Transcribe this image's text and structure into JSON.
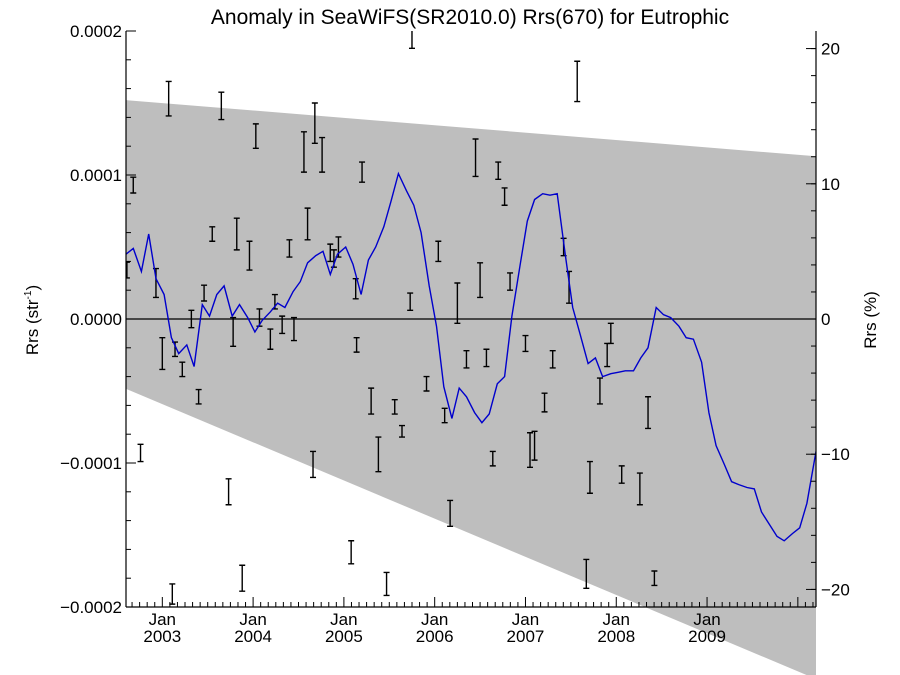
{
  "chart_data": {
    "type": "line",
    "title": "Anomaly in SeaWiFS(SR2010.0) Rrs(670) for Eutrophic",
    "ylabel_left": "Rrs (str",
    "ylabel_left_sup": "-1",
    "ylabel_left_end": ")",
    "ylabel_right": "Rrs (%)",
    "x_range": [
      2002.6,
      2010.2
    ],
    "ylim_left": [
      -0.0002,
      0.0002
    ],
    "ylim_right": [
      -21.3,
      21.3
    ],
    "x_ticks": [
      {
        "x": 2003.0,
        "month": "Jan",
        "year": "2003"
      },
      {
        "x": 2004.0,
        "month": "Jan",
        "year": "2004"
      },
      {
        "x": 2005.0,
        "month": "Jan",
        "year": "2005"
      },
      {
        "x": 2006.0,
        "month": "Jan",
        "year": "2006"
      },
      {
        "x": 2007.0,
        "month": "Jan",
        "year": "2007"
      },
      {
        "x": 2008.0,
        "month": "Jan",
        "year": "2008"
      },
      {
        "x": 2009.0,
        "month": "Jan",
        "year": "2009"
      }
    ],
    "y_ticks_left": [
      {
        "v": 0.0002,
        "label": "0.0002"
      },
      {
        "v": 0.0001,
        "label": "0.0001"
      },
      {
        "v": 0.0,
        "label": "0.0000"
      },
      {
        "v": -0.0001,
        "label": "−0.0001"
      },
      {
        "v": -0.0002,
        "label": "−0.0002"
      }
    ],
    "y_ticks_right": [
      {
        "v": 20,
        "label": "20"
      },
      {
        "v": 10,
        "label": "10"
      },
      {
        "v": 0,
        "label": "0"
      },
      {
        "v": -10,
        "label": "−10"
      },
      {
        "v": -20,
        "label": "−20"
      }
    ],
    "zero_line": 0.0,
    "band": {
      "x": [
        2002.6,
        2010.2
      ],
      "upper": [
        0.000152,
        0.000113
      ],
      "lower": [
        -4.85e-05,
        -0.00025
      ]
    },
    "series": [
      {
        "color": "#0000cc",
        "x": [
          2002.6,
          2002.68,
          2002.77,
          2002.85,
          2002.93,
          2003.02,
          2003.1,
          2003.18,
          2003.27,
          2003.35,
          2003.44,
          2003.52,
          2003.6,
          2003.68,
          2003.77,
          2003.85,
          2003.94,
          2004.02,
          2004.1,
          2004.19,
          2004.27,
          2004.35,
          2004.44,
          2004.52,
          2004.6,
          2004.69,
          2004.77,
          2004.85,
          2004.93,
          2005.02,
          2005.1,
          2005.19,
          2005.27,
          2005.35,
          2005.44,
          2005.52,
          2005.6,
          2005.69,
          2005.77,
          2005.85,
          2005.94,
          2006.02,
          2006.1,
          2006.19,
          2006.27,
          2006.35,
          2006.44,
          2006.52,
          2006.6,
          2006.69,
          2006.77,
          2006.85,
          2006.94,
          2007.02,
          2007.1,
          2007.19,
          2007.27,
          2007.35,
          2007.44,
          2007.52,
          2007.6,
          2007.69,
          2007.77,
          2007.85,
          2007.94,
          2008.02,
          2008.1,
          2008.19,
          2008.27,
          2008.35,
          2008.44,
          2008.52,
          2008.6,
          2008.69,
          2008.77,
          2008.85,
          2008.94,
          2009.02,
          2009.1,
          2009.19,
          2009.27,
          2009.35,
          2009.44,
          2009.52,
          2009.6,
          2009.69,
          2009.77,
          2009.85,
          2009.94,
          2010.02,
          2010.1,
          2010.2
        ],
        "values": [
          4.5e-05,
          4.9e-05,
          3.3e-05,
          5.9e-05,
          2.8e-05,
          1.7e-05,
          -1.3e-05,
          -2.4e-05,
          -1.8e-05,
          -3.3e-05,
          1e-05,
          2e-06,
          1.7e-05,
          2.3e-05,
          2e-06,
          1e-05,
          1e-06,
          -9e-06,
          -1e-06,
          5e-06,
          1.1e-05,
          8e-06,
          1.9e-05,
          2.6e-05,
          3.9e-05,
          4.4e-05,
          4.7e-05,
          3.1e-05,
          4.5e-05,
          5e-05,
          3.8e-05,
          1.7e-05,
          4.1e-05,
          5e-05,
          6.4e-05,
          8.2e-05,
          0.000101,
          8.9e-05,
          7.9e-05,
          6e-05,
          2.3e-05,
          -5e-06,
          -4.7e-05,
          -6.9e-05,
          -4.8e-05,
          -5.4e-05,
          -6.5e-05,
          -7.2e-05,
          -6.6e-05,
          -4.5e-05,
          -4e-05,
          2e-06,
          3.7e-05,
          6.8e-05,
          8.3e-05,
          8.7e-05,
          8.6e-05,
          8.7e-05,
          4.4e-05,
          8e-06,
          -1e-05,
          -3.1e-05,
          -2.7e-05,
          -4e-05,
          -3.8e-05,
          -3.7e-05,
          -3.6e-05,
          -3.6e-05,
          -2.7e-05,
          -2e-05,
          8e-06,
          3e-06,
          1e-06,
          -5e-06,
          -1.3e-05,
          -1.4e-05,
          -3e-05,
          -6.5e-05,
          -8.8e-05,
          -0.000101,
          -0.000113,
          -0.000115,
          -0.000117,
          -0.000118,
          -0.000134,
          -0.000143,
          -0.000151,
          -0.000154,
          -0.000149,
          -0.000145,
          -0.000128,
          -9.2e-05
        ]
      }
    ],
    "error_bars": [
      {
        "x": 2002.61,
        "y": 3.4e-05,
        "e": 5.5e-06
      },
      {
        "x": 2002.68,
        "y": 9.3e-05,
        "e": 5.5e-06
      },
      {
        "x": 2002.76,
        "y": -9.3e-05,
        "e": 6e-06
      },
      {
        "x": 2002.93,
        "y": 2.5e-05,
        "e": 1e-05
      },
      {
        "x": 2003.0,
        "y": -2.4e-05,
        "e": 1.1e-05
      },
      {
        "x": 2003.07,
        "y": 0.000153,
        "e": 1.2e-05
      },
      {
        "x": 2003.11,
        "y": -0.000191,
        "e": 7e-06
      },
      {
        "x": 2003.14,
        "y": -2.1e-05,
        "e": 5e-06
      },
      {
        "x": 2003.22,
        "y": -3.5e-05,
        "e": 5e-06
      },
      {
        "x": 2003.32,
        "y": 0.0,
        "e": 6e-06
      },
      {
        "x": 2003.4,
        "y": -5.4e-05,
        "e": 5e-06
      },
      {
        "x": 2003.46,
        "y": 1.8e-05,
        "e": 5.5e-06
      },
      {
        "x": 2003.55,
        "y": 5.9e-05,
        "e": 5e-06
      },
      {
        "x": 2003.65,
        "y": 0.000148,
        "e": 9.5e-06
      },
      {
        "x": 2003.73,
        "y": -0.00012,
        "e": 9e-06
      },
      {
        "x": 2003.78,
        "y": -9e-06,
        "e": 1e-05
      },
      {
        "x": 2003.82,
        "y": 5.9e-05,
        "e": 1.1e-05
      },
      {
        "x": 2003.88,
        "y": -0.00018,
        "e": 9e-06
      },
      {
        "x": 2003.96,
        "y": 4.4e-05,
        "e": 1e-05
      },
      {
        "x": 2004.03,
        "y": 0.000127,
        "e": 8.5e-06
      },
      {
        "x": 2004.07,
        "y": 1e-06,
        "e": 6e-06
      },
      {
        "x": 2004.19,
        "y": -1.4e-05,
        "e": 7e-06
      },
      {
        "x": 2004.24,
        "y": 1.2e-05,
        "e": 5e-06
      },
      {
        "x": 2004.32,
        "y": -4e-06,
        "e": 6e-06
      },
      {
        "x": 2004.4,
        "y": 4.9e-05,
        "e": 6e-06
      },
      {
        "x": 2004.45,
        "y": -7e-06,
        "e": 8e-06
      },
      {
        "x": 2004.56,
        "y": 0.000116,
        "e": 1.4e-05
      },
      {
        "x": 2004.6,
        "y": 6.6e-05,
        "e": 1.1e-05
      },
      {
        "x": 2004.66,
        "y": -0.000101,
        "e": 9e-06
      },
      {
        "x": 2004.68,
        "y": 0.000136,
        "e": 1.4e-05
      },
      {
        "x": 2004.76,
        "y": 0.000114,
        "e": 1.2e-05
      },
      {
        "x": 2004.85,
        "y": 4.6e-05,
        "e": 6e-06
      },
      {
        "x": 2004.89,
        "y": 4.2e-05,
        "e": 6e-06
      },
      {
        "x": 2004.94,
        "y": 5e-05,
        "e": 7e-06
      },
      {
        "x": 2005.08,
        "y": -0.000162,
        "e": 8e-06
      },
      {
        "x": 2005.13,
        "y": 2.1e-05,
        "e": 7e-06
      },
      {
        "x": 2005.14,
        "y": -1.8e-05,
        "e": 5e-06
      },
      {
        "x": 2005.2,
        "y": 0.000102,
        "e": 7e-06
      },
      {
        "x": 2005.3,
        "y": -5.7e-05,
        "e": 9e-06
      },
      {
        "x": 2005.38,
        "y": -9.4e-05,
        "e": 1.2e-05
      },
      {
        "x": 2005.47,
        "y": -0.000184,
        "e": 8e-06
      },
      {
        "x": 2005.56,
        "y": -6.1e-05,
        "e": 5e-06
      },
      {
        "x": 2005.64,
        "y": -7.8e-05,
        "e": 4e-06
      },
      {
        "x": 2005.73,
        "y": 1.2e-05,
        "e": 6e-06
      },
      {
        "x": 2005.75,
        "y": 0.0002,
        "e": 1.2e-05
      },
      {
        "x": 2005.91,
        "y": -4.5e-05,
        "e": 5e-06
      },
      {
        "x": 2006.04,
        "y": 4.7e-05,
        "e": 7e-06
      },
      {
        "x": 2006.11,
        "y": -6.7e-05,
        "e": 5e-06
      },
      {
        "x": 2006.17,
        "y": -0.000135,
        "e": 9e-06
      },
      {
        "x": 2006.25,
        "y": 1.1e-05,
        "e": 1.4e-05
      },
      {
        "x": 2006.35,
        "y": -2.8e-05,
        "e": 6e-06
      },
      {
        "x": 2006.45,
        "y": 0.000112,
        "e": 1.3e-05
      },
      {
        "x": 2006.5,
        "y": 2.7e-05,
        "e": 1.2e-05
      },
      {
        "x": 2006.57,
        "y": -2.7e-05,
        "e": 6e-06
      },
      {
        "x": 2006.64,
        "y": -9.7e-05,
        "e": 5e-06
      },
      {
        "x": 2006.7,
        "y": 0.000103,
        "e": 6e-06
      },
      {
        "x": 2006.77,
        "y": 8.5e-05,
        "e": 6e-06
      },
      {
        "x": 2006.83,
        "y": 2.6e-05,
        "e": 6e-06
      },
      {
        "x": 2007.0,
        "y": -1.7e-05,
        "e": 5.5e-06
      },
      {
        "x": 2007.05,
        "y": -9.1e-05,
        "e": 1.2e-05
      },
      {
        "x": 2007.1,
        "y": -8.8e-05,
        "e": 1e-05
      },
      {
        "x": 2007.21,
        "y": -5.8e-05,
        "e": 6.5e-06
      },
      {
        "x": 2007.3,
        "y": -2.8e-05,
        "e": 6e-06
      },
      {
        "x": 2007.42,
        "y": 5e-05,
        "e": 6e-06
      },
      {
        "x": 2007.48,
        "y": 2.2e-05,
        "e": 1.1e-05
      },
      {
        "x": 2007.57,
        "y": 0.000165,
        "e": 1.4e-05
      },
      {
        "x": 2007.67,
        "y": -0.000177,
        "e": 1e-05
      },
      {
        "x": 2007.71,
        "y": -0.00011,
        "e": 1.1e-05
      },
      {
        "x": 2007.82,
        "y": -5e-05,
        "e": 9e-06
      },
      {
        "x": 2007.9,
        "y": -2.5e-05,
        "e": 8e-06
      },
      {
        "x": 2007.94,
        "y": -1e-05,
        "e": 7e-06
      },
      {
        "x": 2008.06,
        "y": -0.000108,
        "e": 6e-06
      },
      {
        "x": 2008.26,
        "y": -0.000118,
        "e": 1.1e-05
      },
      {
        "x": 2008.35,
        "y": -6.5e-05,
        "e": 1.1e-05
      },
      {
        "x": 2008.42,
        "y": -0.00018,
        "e": 5e-06
      }
    ]
  }
}
